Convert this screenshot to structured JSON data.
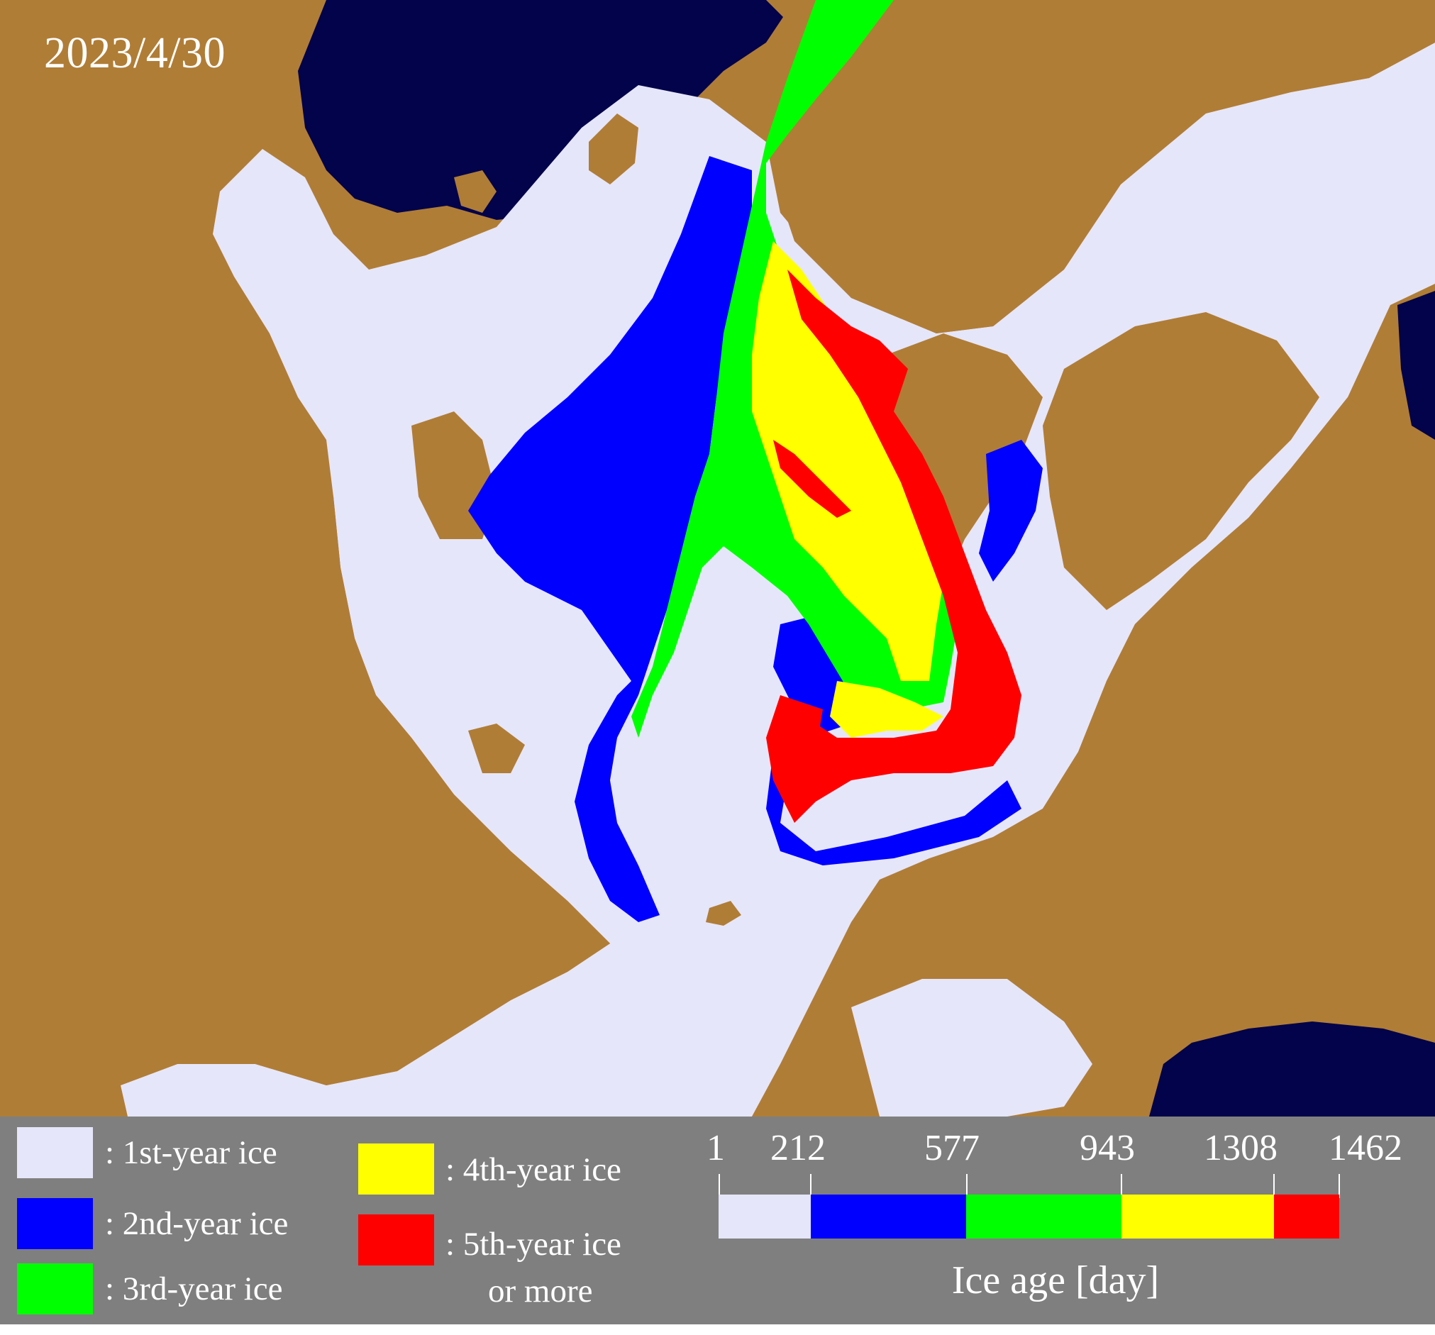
{
  "map": {
    "date": "2023/4/30",
    "colors": {
      "land": "#b07d36",
      "ocean": "#02034a",
      "first_year": "#e6e6fa",
      "second_year": "#0000ff",
      "third_year": "#00ff00",
      "fourth_year": "#ffff00",
      "fifth_year_plus": "#ff0000"
    }
  },
  "legend": {
    "first_year": ": 1st-year ice",
    "second_year": ": 2nd-year ice",
    "third_year": ": 3rd-year ice",
    "fourth_year": ": 4th-year ice",
    "fifth_year_line1": ": 5th-year ice",
    "fifth_year_line2": "or more"
  },
  "colorbar": {
    "ticks": [
      "1",
      "212",
      "577",
      "943",
      "1308",
      "1462"
    ],
    "title": "Ice age [day]",
    "segments": [
      {
        "from": 1,
        "to": 212,
        "color": "#e6e6fa"
      },
      {
        "from": 212,
        "to": 577,
        "color": "#0000ff"
      },
      {
        "from": 577,
        "to": 943,
        "color": "#00ff00"
      },
      {
        "from": 943,
        "to": 1308,
        "color": "#ffff00"
      },
      {
        "from": 1308,
        "to": 1462,
        "color": "#ff0000"
      }
    ]
  }
}
